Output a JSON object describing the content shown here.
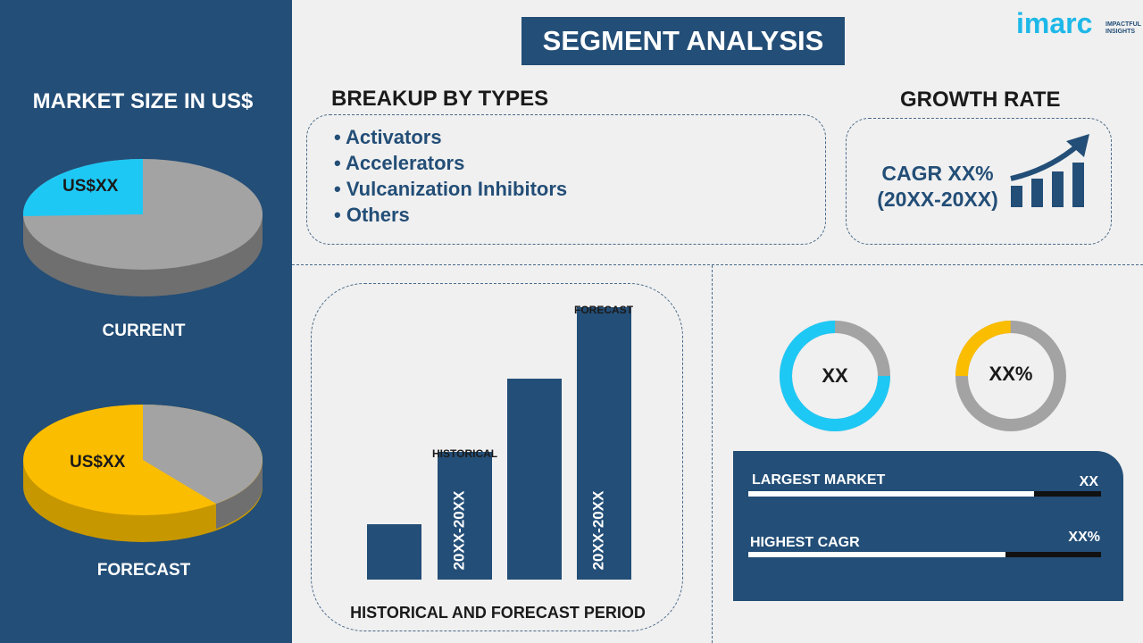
{
  "title": "SEGMENT ANALYSIS",
  "logo": {
    "name": "imarc",
    "tagline": "IMPACTFUL INSIGHTS"
  },
  "left": {
    "heading": "MARKET SIZE IN US$",
    "current_label": "CURRENT",
    "current_value": "US$XX",
    "forecast_label": "FORECAST",
    "forecast_value": "US$XX"
  },
  "breakup": {
    "heading": "BREAKUP BY TYPES",
    "items": [
      "Activators",
      "Accelerators",
      "Vulcanization Inhibitors",
      "Others"
    ]
  },
  "growth": {
    "heading": "GROWTH RATE",
    "cagr": "CAGR XX%",
    "period": "(20XX-20XX)"
  },
  "period_chart": {
    "historical_label": "HISTORICAL",
    "forecast_label": "FORECAST",
    "historical_range": "20XX-20XX",
    "forecast_range": "20XX-20XX",
    "xlabel": "HISTORICAL AND FORECAST PERIOD"
  },
  "donuts": [
    {
      "value": "XX",
      "fraction": 0.75,
      "color": "#1ec8f5"
    },
    {
      "value": "XX%",
      "fraction": 0.25,
      "color": "#fbbd00"
    }
  ],
  "stats": [
    {
      "label": "LARGEST MARKET",
      "value": "XX",
      "progress": 0.81
    },
    {
      "label": "HIGHEST CAGR",
      "value": "XX%",
      "progress": 0.73
    }
  ],
  "colors": {
    "navy": "#234e77",
    "cyan": "#1ec8f5",
    "yellow": "#fbbd00",
    "gray": "#a3a3a3"
  }
}
